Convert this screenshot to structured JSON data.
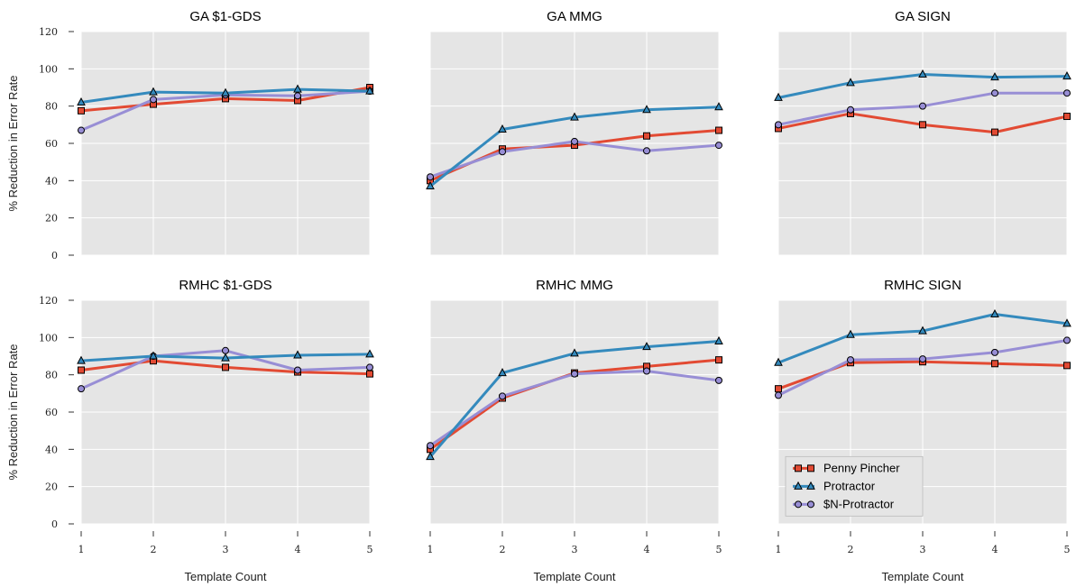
{
  "chart_data": {
    "type": "line",
    "layout": "2x3 small multiples",
    "shared_x_label": "Template Count",
    "shared_y_label": "% Reduction in Error Rate",
    "x_ticks": [
      1,
      2,
      3,
      4,
      5
    ],
    "y_ticks": [
      0,
      20,
      40,
      60,
      80,
      100,
      120
    ],
    "xlim": [
      1,
      5
    ],
    "ylim": [
      0,
      120
    ],
    "grid": true,
    "colors": {
      "penny_pincher": "#E24A33",
      "protractor": "#348ABD",
      "n_protractor": "#988ED5",
      "panel_background": "#E5E5E5",
      "grid": "#FFFFFF"
    },
    "legend": {
      "panel": "RMHC SIGN",
      "placement": "lower-left",
      "entries": [
        {
          "name": "Penny Pincher",
          "marker": "square",
          "color": "#E24A33"
        },
        {
          "name": "Protractor",
          "marker": "triangle",
          "color": "#348ABD"
        },
        {
          "name": "$N-Protractor",
          "marker": "circle",
          "color": "#988ED5"
        }
      ]
    },
    "panels": [
      {
        "title": "GA $1-GDS",
        "x": [
          1,
          2,
          3,
          4,
          5
        ],
        "series": [
          {
            "name": "Penny Pincher",
            "values": [
              77.5,
              81,
              84,
              83,
              90
            ]
          },
          {
            "name": "Protractor",
            "values": [
              82,
              87.5,
              87,
              89,
              88
            ]
          },
          {
            "name": "$N-Protractor",
            "values": [
              67,
              83.5,
              86,
              85.5,
              88
            ]
          }
        ]
      },
      {
        "title": "GA MMG",
        "x": [
          1,
          2,
          3,
          4,
          5
        ],
        "series": [
          {
            "name": "Penny Pincher",
            "values": [
              40,
              57,
              59,
              64,
              67
            ]
          },
          {
            "name": "Protractor",
            "values": [
              37,
              67.5,
              74,
              78,
              79.5
            ]
          },
          {
            "name": "$N-Protractor",
            "values": [
              42,
              55.5,
              61,
              56,
              59
            ]
          }
        ]
      },
      {
        "title": "GA SIGN",
        "x": [
          1,
          2,
          3,
          4,
          5
        ],
        "series": [
          {
            "name": "Penny Pincher",
            "values": [
              68,
              76,
              70,
              66,
              74.5
            ]
          },
          {
            "name": "Protractor",
            "values": [
              84.5,
              92.5,
              97,
              95.5,
              96
            ]
          },
          {
            "name": "$N-Protractor",
            "values": [
              70,
              78,
              80,
              87,
              87
            ]
          }
        ]
      },
      {
        "title": "RMHC $1-GDS",
        "x": [
          1,
          2,
          3,
          4,
          5
        ],
        "series": [
          {
            "name": "Penny Pincher",
            "values": [
              82.5,
              87.5,
              84,
              81.5,
              80.5
            ]
          },
          {
            "name": "Protractor",
            "values": [
              87.5,
              90,
              89,
              90.5,
              91
            ]
          },
          {
            "name": "$N-Protractor",
            "values": [
              72.5,
              90,
              93,
              82.5,
              84
            ]
          }
        ]
      },
      {
        "title": "RMHC MMG",
        "x": [
          1,
          2,
          3,
          4,
          5
        ],
        "series": [
          {
            "name": "Penny Pincher",
            "values": [
              40,
              67.5,
              81,
              84.5,
              88
            ]
          },
          {
            "name": "Protractor",
            "values": [
              36,
              81,
              91.5,
              95,
              98
            ]
          },
          {
            "name": "$N-Protractor",
            "values": [
              42,
              68.5,
              80.5,
              82,
              77
            ]
          }
        ]
      },
      {
        "title": "RMHC SIGN",
        "x": [
          1,
          2,
          3,
          4,
          5
        ],
        "series": [
          {
            "name": "Penny Pincher",
            "values": [
              72.5,
              86.5,
              87,
              86,
              85
            ]
          },
          {
            "name": "Protractor",
            "values": [
              86.5,
              101.5,
              103.5,
              112.5,
              107.5
            ]
          },
          {
            "name": "$N-Protractor",
            "values": [
              69,
              88,
              88.5,
              92,
              98.5
            ]
          }
        ]
      }
    ]
  }
}
